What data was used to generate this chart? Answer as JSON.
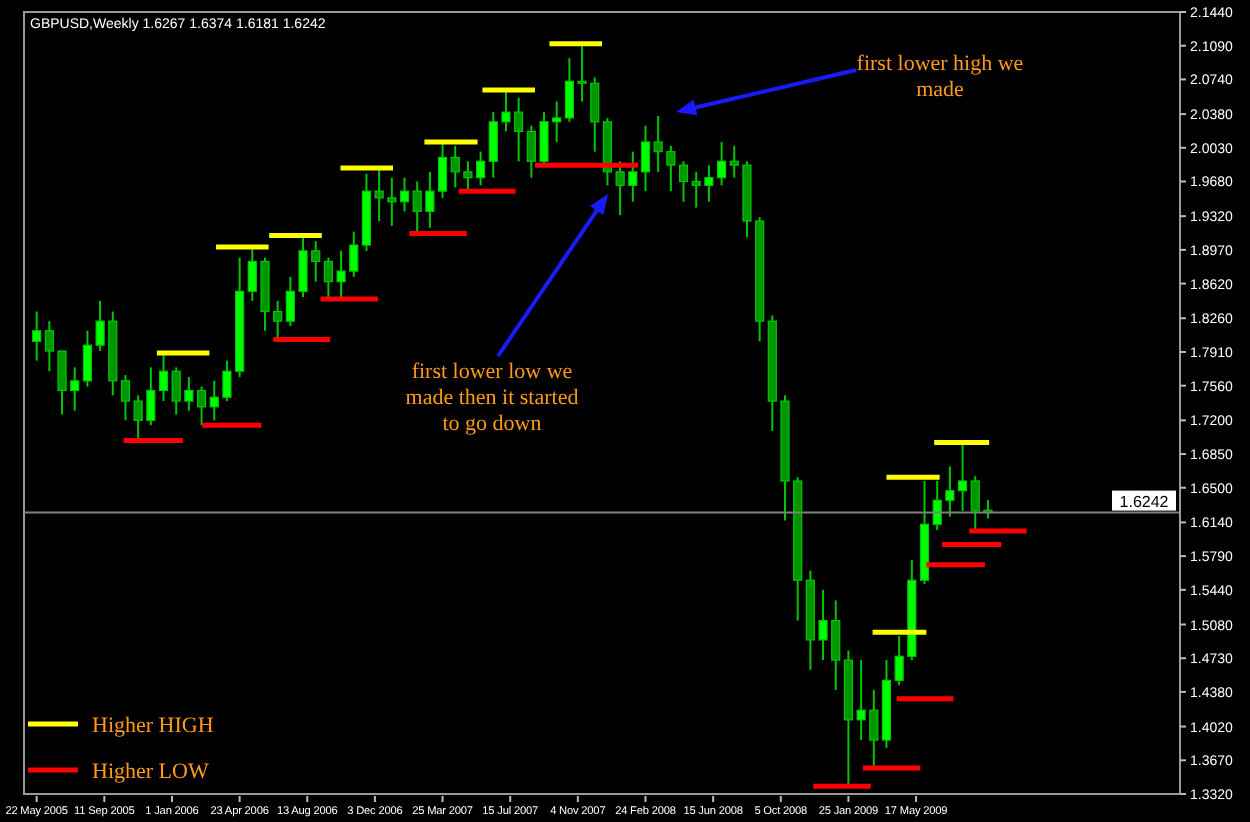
{
  "chart_data": {
    "type": "candlestick",
    "title": "GBPUSD,Weekly  1.6267 1.6374 1.6181 1.6242",
    "color": "#00c800",
    "x": [
      "2005-05-22",
      "2005-06-12",
      "2005-07-03",
      "2005-07-24",
      "2005-08-14",
      "2005-09-04",
      "2005-09-25",
      "2005-10-16",
      "2005-11-06",
      "2005-11-27",
      "2005-12-18",
      "2006-01-08",
      "2006-01-29",
      "2006-02-19",
      "2006-03-12",
      "2006-04-02",
      "2006-04-23",
      "2006-05-14",
      "2006-06-04",
      "2006-06-25",
      "2006-07-16",
      "2006-08-06",
      "2006-08-27",
      "2006-09-17",
      "2006-10-08",
      "2006-10-29",
      "2006-11-19",
      "2006-12-10",
      "2006-12-31",
      "2007-01-21",
      "2007-02-11",
      "2007-03-04",
      "2007-03-25",
      "2007-04-15",
      "2007-05-06",
      "2007-05-27",
      "2007-06-17",
      "2007-07-08",
      "2007-07-29",
      "2007-08-19",
      "2007-09-09",
      "2007-09-30",
      "2007-10-21",
      "2007-11-11",
      "2007-12-02",
      "2007-12-23",
      "2008-01-13",
      "2008-02-03",
      "2008-02-24",
      "2008-03-16",
      "2008-04-06",
      "2008-04-27",
      "2008-05-18",
      "2008-06-08",
      "2008-06-29",
      "2008-07-20",
      "2008-08-10",
      "2008-08-31",
      "2008-09-21",
      "2008-10-12",
      "2008-11-02",
      "2008-11-23",
      "2008-12-14",
      "2009-01-04",
      "2009-01-25",
      "2009-02-15",
      "2009-03-08",
      "2009-03-29",
      "2009-04-19",
      "2009-05-10",
      "2009-05-31",
      "2009-06-21",
      "2009-07-12",
      "2009-08-02",
      "2009-08-23",
      "2009-09-13"
    ],
    "ohlc": [
      [
        1.802,
        1.833,
        1.782,
        1.813
      ],
      [
        1.813,
        1.823,
        1.771,
        1.792
      ],
      [
        1.792,
        1.792,
        1.726,
        1.751
      ],
      [
        1.751,
        1.775,
        1.73,
        1.761
      ],
      [
        1.761,
        1.813,
        1.755,
        1.798
      ],
      [
        1.798,
        1.844,
        1.792,
        1.823
      ],
      [
        1.823,
        1.833,
        1.746,
        1.761
      ],
      [
        1.761,
        1.767,
        1.72,
        1.74
      ],
      [
        1.74,
        1.746,
        1.699,
        1.72
      ],
      [
        1.72,
        1.775,
        1.715,
        1.751
      ],
      [
        1.751,
        1.79,
        1.74,
        1.771
      ],
      [
        1.771,
        1.775,
        1.726,
        1.74
      ],
      [
        1.74,
        1.765,
        1.73,
        1.751
      ],
      [
        1.751,
        1.755,
        1.715,
        1.734
      ],
      [
        1.734,
        1.761,
        1.72,
        1.744
      ],
      [
        1.744,
        1.782,
        1.74,
        1.771
      ],
      [
        1.771,
        1.889,
        1.765,
        1.854
      ],
      [
        1.854,
        1.9,
        1.844,
        1.885
      ],
      [
        1.885,
        1.889,
        1.813,
        1.833
      ],
      [
        1.833,
        1.844,
        1.804,
        1.823
      ],
      [
        1.823,
        1.869,
        1.818,
        1.854
      ],
      [
        1.854,
        1.912,
        1.848,
        1.896
      ],
      [
        1.896,
        1.906,
        1.864,
        1.885
      ],
      [
        1.885,
        1.889,
        1.846,
        1.864
      ],
      [
        1.864,
        1.896,
        1.848,
        1.875
      ],
      [
        1.875,
        1.916,
        1.869,
        1.902
      ],
      [
        1.902,
        1.976,
        1.896,
        1.958
      ],
      [
        1.958,
        1.983,
        1.927,
        1.951
      ],
      [
        1.951,
        1.972,
        1.922,
        1.947
      ],
      [
        1.947,
        1.972,
        1.937,
        1.958
      ],
      [
        1.958,
        1.968,
        1.914,
        1.937
      ],
      [
        1.937,
        1.978,
        1.92,
        1.958
      ],
      [
        1.958,
        2.009,
        1.951,
        1.993
      ],
      [
        1.993,
        2.005,
        1.962,
        1.978
      ],
      [
        1.978,
        1.989,
        1.958,
        1.972
      ],
      [
        1.972,
        1.999,
        1.964,
        1.989
      ],
      [
        1.989,
        2.04,
        1.972,
        2.03
      ],
      [
        2.03,
        2.063,
        2.02,
        2.04
      ],
      [
        2.04,
        2.055,
        1.989,
        2.02
      ],
      [
        2.02,
        2.026,
        1.972,
        1.989
      ],
      [
        1.989,
        2.04,
        1.985,
        2.03
      ],
      [
        2.03,
        2.051,
        2.009,
        2.034
      ],
      [
        2.034,
        2.096,
        2.03,
        2.072
      ],
      [
        2.072,
        2.111,
        2.051,
        2.07
      ],
      [
        2.07,
        2.076,
        1.999,
        2.03
      ],
      [
        2.03,
        2.034,
        1.964,
        1.978
      ],
      [
        1.978,
        1.989,
        1.933,
        1.964
      ],
      [
        1.964,
        1.999,
        1.947,
        1.978
      ],
      [
        1.978,
        2.026,
        1.958,
        2.009
      ],
      [
        2.009,
        2.036,
        1.978,
        1.999
      ],
      [
        1.999,
        2.005,
        1.958,
        1.985
      ],
      [
        1.985,
        1.989,
        1.947,
        1.968
      ],
      [
        1.968,
        1.978,
        1.941,
        1.964
      ],
      [
        1.964,
        1.985,
        1.947,
        1.972
      ],
      [
        1.972,
        2.009,
        1.964,
        1.989
      ],
      [
        1.989,
        2.005,
        1.972,
        1.985
      ],
      [
        1.985,
        1.989,
        1.91,
        1.927
      ],
      [
        1.927,
        1.931,
        1.802,
        1.823
      ],
      [
        1.823,
        1.829,
        1.709,
        1.74
      ],
      [
        1.74,
        1.746,
        1.616,
        1.657
      ],
      [
        1.657,
        1.661,
        1.512,
        1.554
      ],
      [
        1.554,
        1.564,
        1.461,
        1.492
      ],
      [
        1.492,
        1.544,
        1.471,
        1.512
      ],
      [
        1.512,
        1.533,
        1.44,
        1.471
      ],
      [
        1.471,
        1.481,
        1.34,
        1.409
      ],
      [
        1.409,
        1.471,
        1.388,
        1.419
      ],
      [
        1.419,
        1.44,
        1.359,
        1.388
      ],
      [
        1.388,
        1.471,
        1.38,
        1.45
      ],
      [
        1.45,
        1.496,
        1.445,
        1.475
      ],
      [
        1.475,
        1.575,
        1.471,
        1.554
      ],
      [
        1.554,
        1.657,
        1.55,
        1.612
      ],
      [
        1.612,
        1.657,
        1.606,
        1.637
      ],
      [
        1.637,
        1.672,
        1.62,
        1.647
      ],
      [
        1.647,
        1.697,
        1.626,
        1.657
      ],
      [
        1.657,
        1.662,
        1.606,
        1.626
      ],
      [
        1.6267,
        1.6374,
        1.6181,
        1.6242
      ]
    ],
    "series": [
      {
        "name": "Higher HIGH",
        "type": "line",
        "color": "#ffff00",
        "x": [
          "2005-12-07",
          "2006-03-04",
          null,
          "2006-03-15",
          "2006-06-10",
          null,
          "2006-06-11",
          "2006-09-06",
          null,
          "2006-10-07",
          "2007-01-02",
          null,
          "2007-02-23",
          "2007-05-22",
          null,
          "2007-05-30",
          "2007-08-25",
          null,
          "2007-09-18",
          "2007-12-14",
          null,
          "2009-03-06",
          "2009-06-03",
          null,
          "2009-03-29",
          "2009-06-25",
          null,
          "2009-06-16",
          "2009-09-15"
        ],
        "values": [
          1.79,
          1.79,
          null,
          1.9,
          1.9,
          null,
          1.912,
          1.912,
          null,
          1.982,
          1.982,
          null,
          2.009,
          2.009,
          null,
          2.063,
          2.063,
          null,
          2.111,
          2.111,
          null,
          1.5,
          1.5,
          null,
          1.661,
          1.661,
          null,
          1.697,
          1.697
        ]
      },
      {
        "name": "Higher LOW",
        "type": "line",
        "color": "#ff0000",
        "x": [
          "2005-10-13",
          "2006-01-19",
          null,
          "2006-02-20",
          "2006-05-29",
          null,
          "2006-06-18",
          "2006-09-20",
          null,
          "2006-09-04",
          "2006-12-08",
          null,
          "2007-01-29",
          "2007-05-04",
          null,
          "2007-04-21",
          "2007-07-24",
          null,
          "2007-08-25",
          "2008-02-12",
          null,
          "2008-11-28",
          "2009-03-03",
          null,
          "2009-02-18",
          "2009-05-24",
          null,
          "2009-04-15",
          "2009-07-18",
          null,
          "2009-06-03",
          "2009-09-08",
          null,
          "2009-06-29",
          "2009-10-05",
          null,
          "2009-08-13",
          "2009-11-16"
        ],
        "values": [
          1.699,
          1.699,
          null,
          1.715,
          1.715,
          null,
          1.804,
          1.804,
          null,
          1.846,
          1.846,
          null,
          1.914,
          1.914,
          null,
          1.958,
          1.958,
          null,
          1.985,
          1.985,
          null,
          1.34,
          1.34,
          null,
          1.359,
          1.359,
          null,
          1.431,
          1.431,
          null,
          1.57,
          1.57,
          null,
          1.591,
          1.591,
          null,
          1.605,
          1.605
        ]
      }
    ],
    "xlim": [
      "2005-05-01",
      "2010-07-28"
    ],
    "xticks": [
      {
        "value": "2005-05-22",
        "label": "22 May 2005"
      },
      {
        "value": "2005-09-11",
        "label": "11 Sep 2005"
      },
      {
        "value": "2006-01-01",
        "label": "1 Jan 2006"
      },
      {
        "value": "2006-04-23",
        "label": "23 Apr 2006"
      },
      {
        "value": "2006-08-13",
        "label": "13 Aug 2006"
      },
      {
        "value": "2006-12-03",
        "label": "3 Dec 2006"
      },
      {
        "value": "2007-03-25",
        "label": "25 Mar 2007"
      },
      {
        "value": "2007-07-15",
        "label": "15 Jul 2007"
      },
      {
        "value": "2007-11-04",
        "label": "4 Nov 2007"
      },
      {
        "value": "2008-02-24",
        "label": "24 Feb 2008"
      },
      {
        "value": "2008-06-15",
        "label": "15 Jun 2008"
      },
      {
        "value": "2008-10-05",
        "label": "5 Oct 2008"
      },
      {
        "value": "2009-01-25",
        "label": "25 Jan 2009"
      },
      {
        "value": "2009-05-17",
        "label": "17 May 2009"
      }
    ],
    "ylim": [
      1.332,
      2.144
    ],
    "yticks": [
      {
        "value": 2.144,
        "label": "2.1440"
      },
      {
        "value": 2.109,
        "label": "2.1090"
      },
      {
        "value": 2.074,
        "label": "2.0740"
      },
      {
        "value": 2.038,
        "label": "2.0380"
      },
      {
        "value": 2.003,
        "label": "2.0030"
      },
      {
        "value": 1.968,
        "label": "1.9680"
      },
      {
        "value": 1.932,
        "label": "1.9320"
      },
      {
        "value": 1.897,
        "label": "1.8970"
      },
      {
        "value": 1.862,
        "label": "1.8620"
      },
      {
        "value": 1.826,
        "label": "1.8260"
      },
      {
        "value": 1.791,
        "label": "1.7910"
      },
      {
        "value": 1.756,
        "label": "1.7560"
      },
      {
        "value": 1.72,
        "label": "1.7200"
      },
      {
        "value": 1.685,
        "label": "1.6850"
      },
      {
        "value": 1.65,
        "label": "1.6500"
      },
      {
        "value": 1.614,
        "label": "1.6140"
      },
      {
        "value": 1.579,
        "label": "1.5790"
      },
      {
        "value": 1.544,
        "label": "1.5440"
      },
      {
        "value": 1.508,
        "label": "1.5080"
      },
      {
        "value": 1.473,
        "label": "1.4730"
      },
      {
        "value": 1.438,
        "label": "1.4380"
      },
      {
        "value": 1.402,
        "label": "1.4020"
      },
      {
        "value": 1.367,
        "label": "1.3670"
      },
      {
        "value": 1.332,
        "label": "1.3320"
      }
    ],
    "ref_lines": [
      {
        "axis": "y",
        "value": 1.6242,
        "label": "1.6242",
        "color": "#808080"
      }
    ],
    "annotations": [
      "first lower high we made",
      "first lower low we made then it started to go down"
    ],
    "legend": "bottom left"
  }
}
